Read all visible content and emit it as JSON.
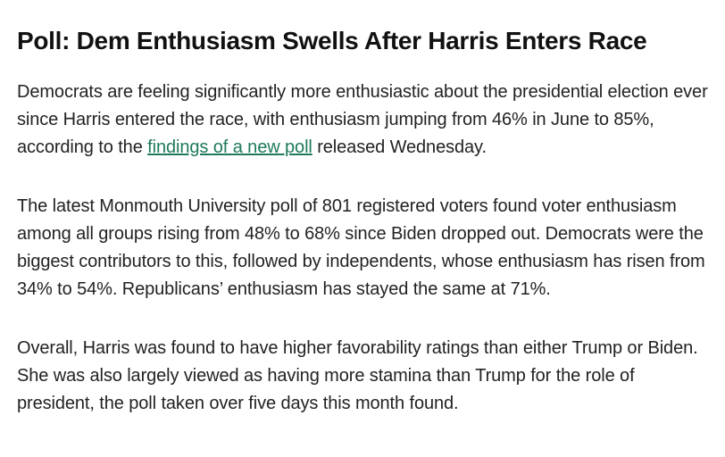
{
  "article": {
    "title": "Poll: Dem Enthusiasm Swells After Harris Enters Race",
    "paragraphs": [
      {
        "before": "Democrats are feeling significantly more enthusiastic about the presidential election ever since Harris entered the race, with enthusiasm jumping from 46% in June to 85%, according to the ",
        "link": "findings of a new poll",
        "after": " released Wednesday."
      },
      {
        "text": "The latest Monmouth University poll of 801 registered voters found voter enthusiasm among all groups rising from 48% to 68% since Biden dropped out. Democrats were the biggest contributors to this, followed by independents, whose enthusiasm has risen from 34% to 54%. Republicans’ enthusiasm has stayed the same at 71%."
      },
      {
        "text": "Overall, Harris was found to have higher favorability ratings than either Trump or Biden. She was also largely viewed as having more stamina than Trump for the role of president, the poll taken over five days this month found."
      }
    ]
  }
}
